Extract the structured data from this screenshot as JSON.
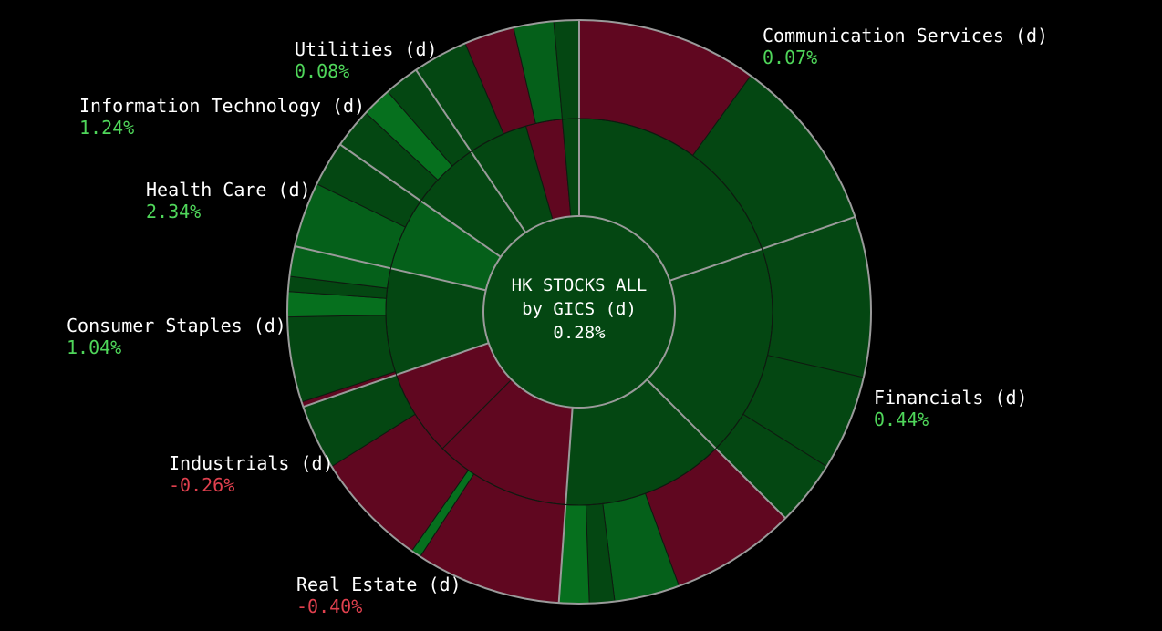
{
  "chart_data": {
    "type": "sunburst",
    "title_lines": [
      "HK STOCKS ALL",
      "by GICS (d)",
      "0.28%"
    ],
    "colors": {
      "background": "#000000",
      "positive_label": "#4fd65a",
      "negative_label": "#e0404e",
      "border": "#9a9a9a"
    },
    "sectors": [
      {
        "name": "Communication Services (d)",
        "change": "0.07%",
        "sign": "positive"
      },
      {
        "name": "Financials (d)",
        "change": "0.44%",
        "sign": "positive"
      },
      {
        "name": "Real Estate (d)",
        "change": "-0.40%",
        "sign": "negative"
      },
      {
        "name": "Industrials (d)",
        "change": "-0.26%",
        "sign": "negative"
      },
      {
        "name": "Consumer Staples (d)",
        "change": "1.04%",
        "sign": "positive"
      },
      {
        "name": "Health Care (d)",
        "change": "2.34%",
        "sign": "positive"
      },
      {
        "name": "Information Technology (d)",
        "change": "1.24%",
        "sign": "positive"
      },
      {
        "name": "Utilities (d)",
        "change": "0.08%",
        "sign": "positive"
      }
    ]
  }
}
